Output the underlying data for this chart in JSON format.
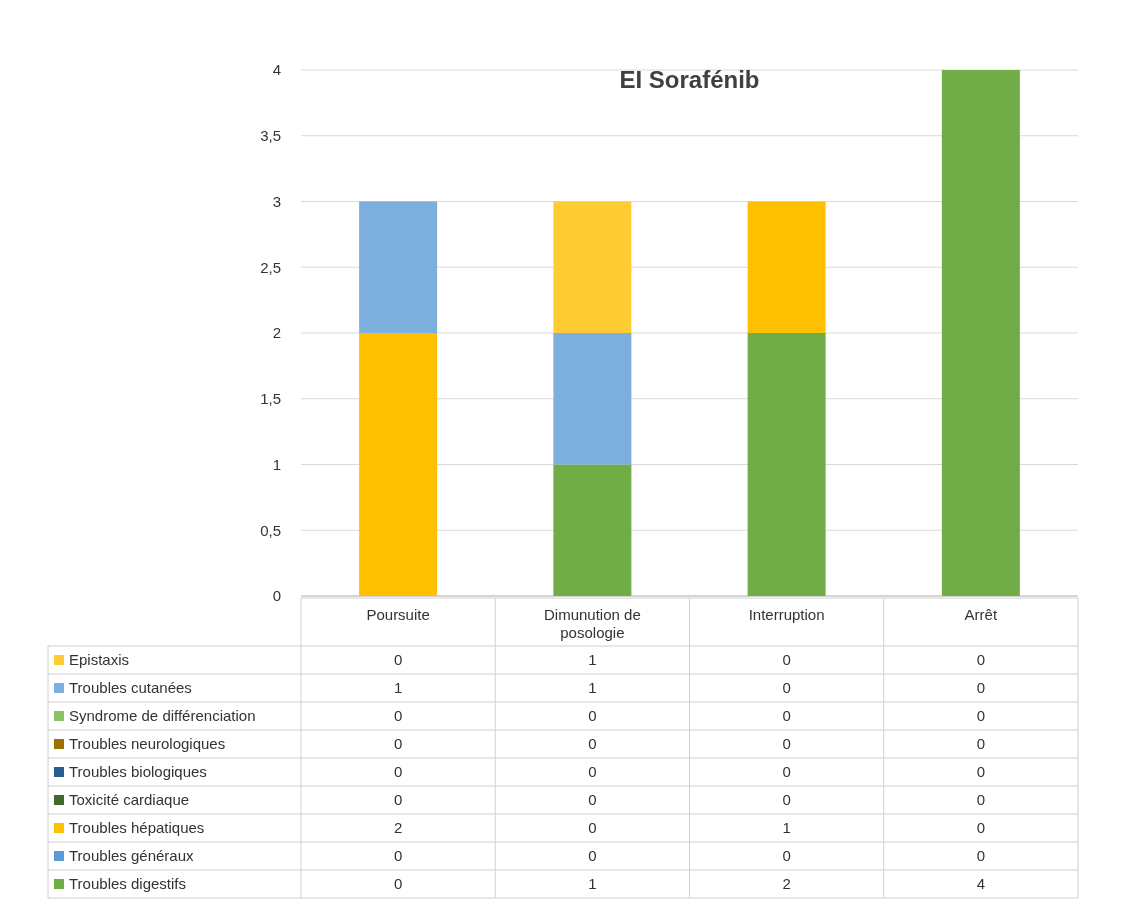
{
  "chart_data": {
    "type": "bar",
    "title": "EI Sorafénib",
    "stacked": true,
    "categories": [
      "Poursuite",
      "Dimunution de posologie",
      "Interruption",
      "Arrêt"
    ],
    "series": [
      {
        "name": "Troubles digestifs",
        "color": "#70ad47",
        "values": [
          0,
          1,
          2,
          4
        ],
        "value_labels": [
          "0",
          "1",
          "2",
          "4"
        ]
      },
      {
        "name": "Troubles généraux",
        "color": "#5b9bd5",
        "values": [
          0,
          0,
          0,
          0
        ],
        "value_labels": [
          "0",
          "0",
          "0",
          "0"
        ]
      },
      {
        "name": "Troubles hépatiques",
        "color": "#ffc000",
        "values": [
          2,
          0,
          1,
          0
        ],
        "value_labels": [
          "2",
          "0",
          "1",
          "0"
        ]
      },
      {
        "name": "Toxicité cardiaque",
        "color": "#43682b",
        "values": [
          0,
          0,
          0,
          0
        ],
        "value_labels": [
          "0",
          "0",
          "0",
          "0"
        ]
      },
      {
        "name": "Troubles biologiques",
        "color": "#255e91",
        "values": [
          0,
          0,
          0,
          0
        ],
        "value_labels": [
          "0",
          "0",
          "0",
          "0"
        ]
      },
      {
        "name": "Troubles neurologiques",
        "color": "#9e7000",
        "values": [
          0,
          0,
          0,
          0
        ],
        "value_labels": [
          "0",
          "0",
          "0",
          "0"
        ]
      },
      {
        "name": "Syndrome de différenciation",
        "color": "#8cc168",
        "values": [
          0,
          0,
          0,
          0
        ],
        "value_labels": [
          "0",
          "0",
          "0",
          "0"
        ]
      },
      {
        "name": "Troubles cutanées",
        "color": "#7cafdd",
        "values": [
          1,
          1,
          0,
          0
        ],
        "value_labels": [
          "1",
          "1",
          "0",
          "0"
        ]
      },
      {
        "name": "Epistaxis",
        "color": "#ffcd33",
        "values": [
          0,
          1,
          0,
          0
        ],
        "value_labels": [
          "0",
          "1",
          "0",
          "0"
        ]
      }
    ],
    "ylim": [
      0,
      4
    ],
    "yticks": [
      0,
      {
        "value": 0.5,
        "label": "0,5"
      },
      1,
      {
        "value": 1.5,
        "label": "1,5"
      },
      2,
      {
        "value": 2.5,
        "label": "2,5"
      },
      3,
      {
        "value": 3.5,
        "label": "3,5"
      },
      4
    ],
    "grid": "y",
    "legend": "bottom"
  }
}
